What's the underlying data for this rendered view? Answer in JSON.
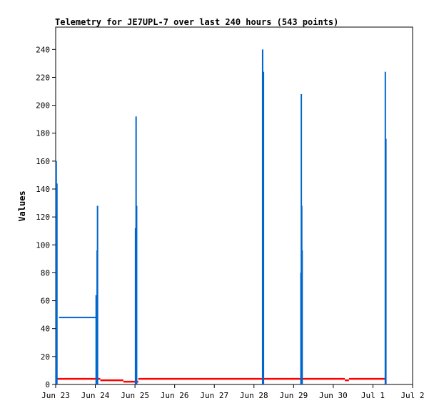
{
  "chart_data": {
    "type": "line",
    "title": "Telemetry for JE7UPL-7 over last 240 hours (543 points)",
    "xlabel": "",
    "ylabel": "Values",
    "x_ticks": [
      "Jun 23",
      "Jun 24",
      "Jun 25",
      "Jun 26",
      "Jun 27",
      "Jun 28",
      "Jun 29",
      "Jun 30",
      "Jul 1",
      "Jul 2"
    ],
    "xlim_days": [
      0,
      9
    ],
    "y_ticks": [
      "0",
      "20",
      "40",
      "60",
      "80",
      "100",
      "120",
      "140",
      "160",
      "180",
      "200",
      "220",
      "240"
    ],
    "ylim": [
      0,
      256
    ],
    "grid": false,
    "series": [
      {
        "color": "#0066cc",
        "baseline_segments": [
          {
            "x_start": "Jun 23 02:00",
            "x_end": "Jun 24 01:00",
            "y": 48
          }
        ],
        "spikes": [
          {
            "x": "Jun 23 00:10",
            "y": 8
          },
          {
            "x": "Jun 23 00:20",
            "y": 160
          },
          {
            "x": "Jun 23 00:45",
            "y": 144
          },
          {
            "x": "Jun 24 00:30",
            "y": 64
          },
          {
            "x": "Jun 24 01:05",
            "y": 96
          },
          {
            "x": "Jun 24 01:20",
            "y": 128
          },
          {
            "x": "Jun 25 00:20",
            "y": 112
          },
          {
            "x": "Jun 25 00:40",
            "y": 192
          },
          {
            "x": "Jun 25 01:00",
            "y": 128
          },
          {
            "x": "Jun 28 05:15",
            "y": 240
          },
          {
            "x": "Jun 28 05:30",
            "y": 152
          },
          {
            "x": "Jun 28 05:45",
            "y": 224
          },
          {
            "x": "Jun 29 04:25",
            "y": 80
          },
          {
            "x": "Jun 29 04:40",
            "y": 208
          },
          {
            "x": "Jun 29 04:55",
            "y": 128
          },
          {
            "x": "Jun 29 05:10",
            "y": 96
          },
          {
            "x": "Jul 1 07:30",
            "y": 224
          },
          {
            "x": "Jul 1 07:50",
            "y": 176
          }
        ]
      },
      {
        "color": "#ff0000",
        "steps": [
          {
            "x_start": "Jun 23 00:00",
            "x_end": "Jun 24 03:00",
            "y": 4
          },
          {
            "x_start": "Jun 24 03:00",
            "x_end": "Jun 24 17:00",
            "y": 3
          },
          {
            "x_start": "Jun 24 17:00",
            "x_end": "Jun 25 02:00",
            "y": 2
          },
          {
            "x_start": "Jun 25 02:00",
            "x_end": "Jun 30 07:00",
            "y": 4
          },
          {
            "x_start": "Jun 30 07:00",
            "x_end": "Jun 30 09:30",
            "y": 3
          },
          {
            "x_start": "Jun 30 09:30",
            "x_end": "Jul 1 07:30",
            "y": 4
          }
        ]
      }
    ]
  }
}
